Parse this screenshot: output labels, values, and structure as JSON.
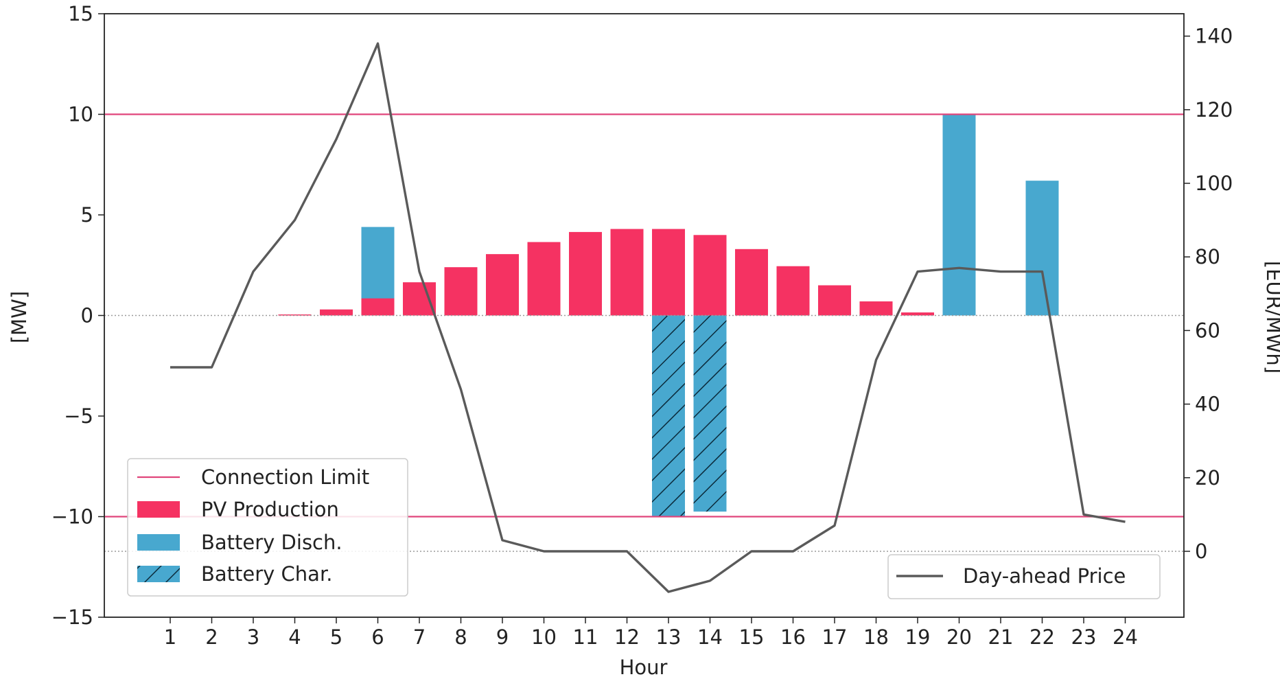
{
  "chart_data": {
    "type": "bar",
    "title": "",
    "xlabel": "Hour",
    "ylabel_left": "[MW]",
    "ylabel_right": "[EUR/MWh]",
    "ylim_left": [
      -15,
      15
    ],
    "ylim_right": [
      -10,
      145
    ],
    "yticks_left": [
      -15,
      -10,
      -5,
      0,
      5,
      10,
      15
    ],
    "yticks_left_labels": [
      "−15",
      "−10",
      "−5",
      "0",
      "5",
      "10",
      "15"
    ],
    "yticks_right": [
      0,
      20,
      40,
      60,
      80,
      100,
      120,
      140
    ],
    "yticks_right_labels": [
      "0",
      "20",
      "40",
      "60",
      "80",
      "100",
      "120",
      "140"
    ],
    "categories": [
      "1",
      "2",
      "3",
      "4",
      "5",
      "6",
      "7",
      "8",
      "9",
      "10",
      "11",
      "12",
      "13",
      "14",
      "15",
      "16",
      "17",
      "18",
      "19",
      "20",
      "21",
      "22",
      "23",
      "24"
    ],
    "connection_limit": [
      10,
      -10
    ],
    "series": [
      {
        "name": "Connection Limit",
        "kind": "hline",
        "color": "#e0457b"
      },
      {
        "name": "PV Production",
        "kind": "bar",
        "color": "#f53262",
        "values": [
          0,
          0,
          0,
          0.05,
          0.3,
          0.85,
          1.65,
          2.4,
          3.05,
          3.65,
          4.15,
          4.3,
          4.3,
          4.0,
          3.3,
          2.45,
          1.5,
          0.7,
          0.15,
          0,
          0,
          0,
          0,
          0
        ]
      },
      {
        "name": "Battery Disch.",
        "kind": "bar",
        "color": "#48a8cf",
        "values": [
          0,
          0,
          0,
          0,
          0,
          4.4,
          0,
          0,
          0,
          0,
          0,
          0,
          0,
          0,
          0,
          0,
          0,
          0,
          0,
          10.0,
          0,
          6.7,
          0,
          0
        ]
      },
      {
        "name": "Battery Char.",
        "kind": "bar",
        "color": "#48a8cf",
        "hatch": true,
        "values": [
          0,
          0,
          0,
          0,
          0,
          0,
          0,
          0,
          0,
          0,
          0,
          0,
          -10.0,
          -9.75,
          0,
          0,
          0,
          0,
          0,
          0,
          0,
          0,
          0,
          0
        ]
      },
      {
        "name": "Day-ahead Price",
        "kind": "line",
        "axis": "right",
        "color": "#5a5a5a",
        "values": [
          50,
          50,
          76,
          90,
          112,
          138,
          76,
          44,
          3,
          0,
          0,
          0,
          -11,
          -8,
          0,
          0,
          7,
          52,
          76,
          77,
          76,
          76,
          10,
          8
        ]
      }
    ],
    "legends": [
      {
        "position": "lower-left",
        "entries": [
          "Connection Limit",
          "PV Production",
          "Battery Disch.",
          "Battery Char."
        ]
      },
      {
        "position": "lower-right",
        "entries": [
          "Day-ahead Price"
        ]
      }
    ],
    "grid": false
  }
}
